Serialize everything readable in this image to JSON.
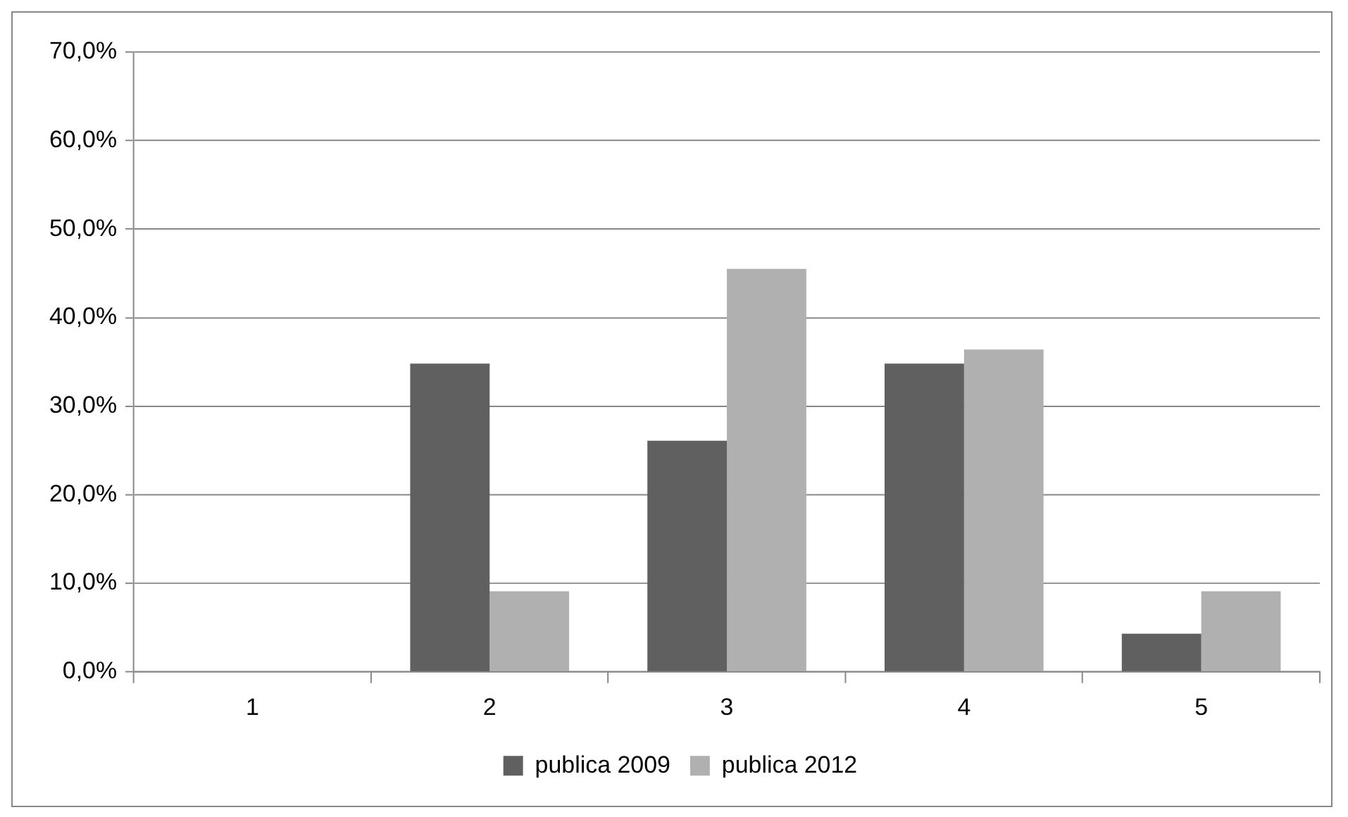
{
  "chart_data": {
    "type": "bar",
    "categories": [
      "1",
      "2",
      "3",
      "4",
      "5"
    ],
    "series": [
      {
        "name": "publica 2009",
        "color": "#606060",
        "values": [
          0,
          34.8,
          26.1,
          34.8,
          4.3
        ]
      },
      {
        "name": "publica 2012",
        "color": "#b0b0b0",
        "values": [
          0,
          9.1,
          45.5,
          36.4,
          9.1
        ]
      }
    ],
    "ylim": [
      0,
      70
    ],
    "yticks": [
      {
        "value": 0,
        "label": "0,0%"
      },
      {
        "value": 10,
        "label": "10,0%"
      },
      {
        "value": 20,
        "label": "20,0%"
      },
      {
        "value": 30,
        "label": "30,0%"
      },
      {
        "value": 40,
        "label": "40,0%"
      },
      {
        "value": 50,
        "label": "50,0%"
      },
      {
        "value": 60,
        "label": "60,0%"
      },
      {
        "value": 70,
        "label": "70,0%"
      }
    ],
    "grid": "y",
    "legend": "bottom"
  }
}
